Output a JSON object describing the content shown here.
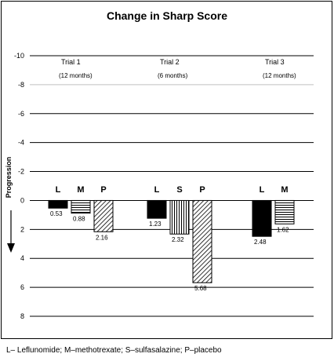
{
  "chart_data": {
    "type": "bar",
    "title": "Change in Sharp Score",
    "ylabel": "Progression",
    "ylim": [
      -10,
      8
    ],
    "y_inverted": true,
    "yticks": [
      -10,
      -8,
      -6,
      -4,
      -2,
      0,
      2,
      4,
      6,
      8
    ],
    "grid": true,
    "groups": [
      {
        "name": "Trial 1",
        "subtitle": "(12 months)",
        "bars": [
          {
            "label": "L",
            "value": 0.53,
            "value_label": "0.53",
            "pattern": "solid"
          },
          {
            "label": "M",
            "value": 0.88,
            "value_label": "0.88",
            "pattern": "horizontal"
          },
          {
            "label": "P",
            "value": 2.16,
            "value_label": "2.16",
            "pattern": "diagonal"
          }
        ]
      },
      {
        "name": "Trial 2",
        "subtitle": "(6 months)",
        "bars": [
          {
            "label": "L",
            "value": 1.23,
            "value_label": "1.23",
            "pattern": "solid"
          },
          {
            "label": "S",
            "value": 2.32,
            "value_label": "2.32",
            "pattern": "vertical"
          },
          {
            "label": "P",
            "value": 5.68,
            "value_label": "5.68",
            "pattern": "diagonal"
          }
        ]
      },
      {
        "name": "Trial 3",
        "subtitle": "(12 months)",
        "bars": [
          {
            "label": "L",
            "value": 2.48,
            "value_label": "2.48",
            "pattern": "solid"
          },
          {
            "label": "M",
            "value": 1.62,
            "value_label": "1.62",
            "pattern": "horizontal"
          }
        ]
      }
    ]
  },
  "footnote": "L– Leflunomide; M–methotrexate; S–sulfasalazine; P–placebo"
}
